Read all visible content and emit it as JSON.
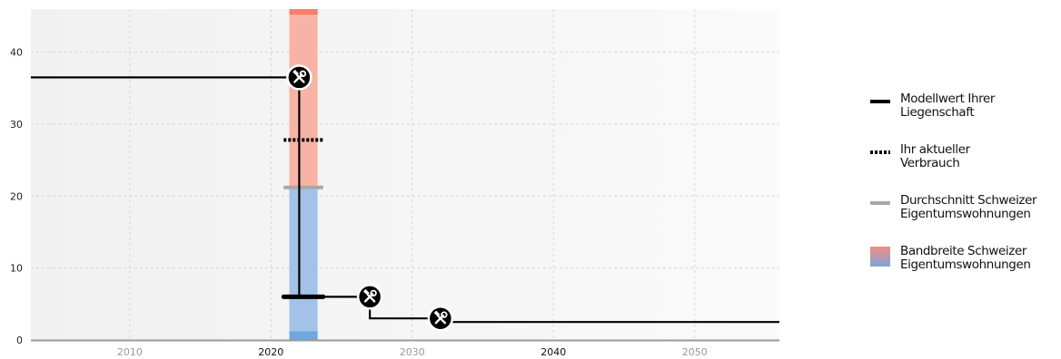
{
  "chart_data": {
    "type": "line",
    "title": "",
    "xlabel": "",
    "ylabel": "",
    "xlim": [
      2003,
      2056
    ],
    "ylim": [
      0,
      46
    ],
    "x_ticks": [
      2010,
      2020,
      2030,
      2040,
      2050
    ],
    "x_ticks_bold": [
      2020,
      2040
    ],
    "y_ticks": [
      0,
      10,
      20,
      30,
      40
    ],
    "grid": true,
    "legend_position": "right",
    "current_year": 2022,
    "band_years": [
      2021.3,
      2023.3
    ],
    "series": [
      {
        "name": "Modellwert Ihrer Liegenschaft",
        "style": "solid",
        "color": "#000000",
        "points": [
          [
            2003,
            36.5
          ],
          [
            2022,
            36.5
          ],
          [
            2022,
            6
          ],
          [
            2027,
            6
          ],
          [
            2027,
            3
          ],
          [
            2032,
            3
          ],
          [
            2032,
            2.5
          ],
          [
            2056,
            2.5
          ]
        ]
      }
    ],
    "model_current_value": 6,
    "current_consumption": {
      "name": "Ihr aktueller Verbrauch",
      "value": 27.8,
      "color": "#000000"
    },
    "swiss_average": {
      "name": "Durchschnitt Schweizer Eigentumswohnungen",
      "value": 21.2,
      "color": "#a9a9a9"
    },
    "band": {
      "name": "Bandbreite Schweizer Eigentumswohnungen",
      "segments": [
        {
          "from": 0,
          "to": 1.2,
          "color": "#6fa8dc"
        },
        {
          "from": 1.2,
          "to": 21.2,
          "color": "#a4c2e8"
        },
        {
          "from": 21.2,
          "to": 45.2,
          "color": "#f7b4a5"
        },
        {
          "from": 45.2,
          "to": 47.5,
          "color": "#f4806e"
        }
      ]
    },
    "renovation_markers": [
      {
        "year": 2022,
        "value": 36.5
      },
      {
        "year": 2027,
        "value": 6
      },
      {
        "year": 2032,
        "value": 3
      }
    ]
  },
  "legend": {
    "items": [
      {
        "key": "model",
        "label": "Modellwert Ihrer Liegenschaft",
        "line1": "Modellwert Ihrer",
        "line2": "Liegenschaft"
      },
      {
        "key": "current",
        "label": "Ihr aktueller Verbrauch",
        "line1": "Ihr aktueller",
        "line2": "Verbrauch"
      },
      {
        "key": "average",
        "label": "Durchschnitt Schweizer Eigentumswohnungen",
        "line1": "Durchschnitt Schweizer",
        "line2": "Eigentumswohnungen"
      },
      {
        "key": "band",
        "label": "Bandbreite Schweizer Eigentumswohnungen",
        "line1": "Bandbreite Schweizer",
        "line2": "Eigentumswohnungen"
      }
    ]
  },
  "icons": {
    "renovation": "tools-icon"
  }
}
